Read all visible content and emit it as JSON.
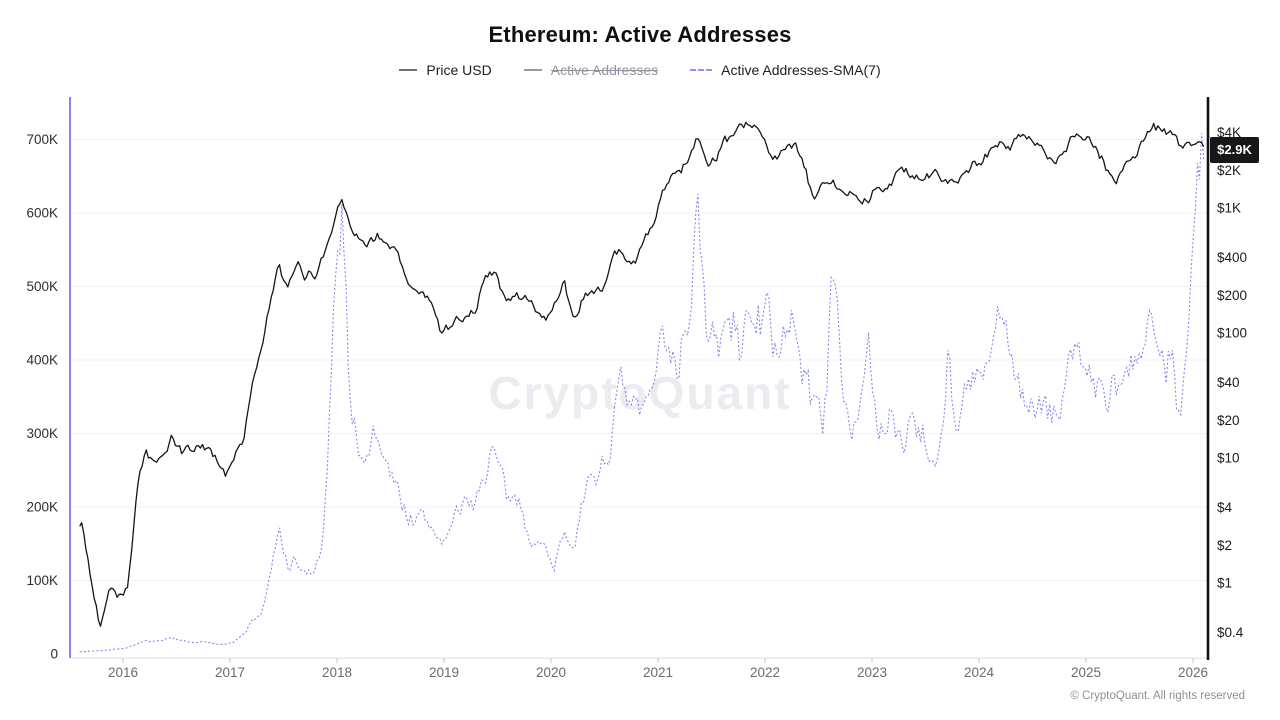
{
  "title": "Ethereum: Active Addresses",
  "watermark": "CryptoQuant",
  "footer": {
    "copyright": "© CryptoQuant. All rights reserved"
  },
  "chart_data": {
    "type": "line",
    "title": "Ethereum: Active Addresses",
    "xlim": [
      2015.58,
      2026.12
    ],
    "grid": "horizontal-only",
    "legend_position": "top-center",
    "x_axis": {
      "years": [
        2016,
        2017,
        2018,
        2019,
        2020,
        2021,
        2022,
        2023,
        2024,
        2025,
        2026
      ]
    },
    "left_axis": {
      "label": "Active Addresses",
      "scale": "linear",
      "color": "#8b80e8",
      "ylim": [
        0,
        760000
      ],
      "ticks": [
        {
          "v": 0,
          "label": "0"
        },
        {
          "v": 100000,
          "label": "100K"
        },
        {
          "v": 200000,
          "label": "200K"
        },
        {
          "v": 300000,
          "label": "300K"
        },
        {
          "v": 400000,
          "label": "400K"
        },
        {
          "v": 500000,
          "label": "500K"
        },
        {
          "v": 600000,
          "label": "600K"
        },
        {
          "v": 700000,
          "label": "700K"
        }
      ]
    },
    "right_axis": {
      "label": "Price USD",
      "scale": "log",
      "color": "#111111",
      "badge_label": "$2.9K",
      "badge_value": 2900,
      "ticks": [
        {
          "v": 0.4,
          "label": "$0.4"
        },
        {
          "v": 1,
          "label": "$1"
        },
        {
          "v": 2,
          "label": "$2"
        },
        {
          "v": 4,
          "label": "$4"
        },
        {
          "v": 10,
          "label": "$10"
        },
        {
          "v": 20,
          "label": "$20"
        },
        {
          "v": 40,
          "label": "$40"
        },
        {
          "v": 100,
          "label": "$100"
        },
        {
          "v": 200,
          "label": "$200"
        },
        {
          "v": 400,
          "label": "$400"
        },
        {
          "v": 1000,
          "label": "$1K"
        },
        {
          "v": 2000,
          "label": "$2K"
        },
        {
          "v": 4000,
          "label": "$4K"
        }
      ]
    },
    "months": [
      "2015-08",
      "2015-09",
      "2015-10",
      "2015-11",
      "2015-12",
      "2016-01",
      "2016-02",
      "2016-03",
      "2016-04",
      "2016-05",
      "2016-06",
      "2016-07",
      "2016-08",
      "2016-09",
      "2016-10",
      "2016-11",
      "2016-12",
      "2017-01",
      "2017-02",
      "2017-03",
      "2017-04",
      "2017-05",
      "2017-06",
      "2017-07",
      "2017-08",
      "2017-09",
      "2017-10",
      "2017-11",
      "2017-12",
      "2018-01",
      "2018-02",
      "2018-03",
      "2018-04",
      "2018-05",
      "2018-06",
      "2018-07",
      "2018-08",
      "2018-09",
      "2018-10",
      "2018-11",
      "2018-12",
      "2019-01",
      "2019-02",
      "2019-03",
      "2019-04",
      "2019-05",
      "2019-06",
      "2019-07",
      "2019-08",
      "2019-09",
      "2019-10",
      "2019-11",
      "2019-12",
      "2020-01",
      "2020-02",
      "2020-03",
      "2020-04",
      "2020-05",
      "2020-06",
      "2020-07",
      "2020-08",
      "2020-09",
      "2020-10",
      "2020-11",
      "2020-12",
      "2021-01",
      "2021-02",
      "2021-03",
      "2021-04",
      "2021-05",
      "2021-06",
      "2021-07",
      "2021-08",
      "2021-09",
      "2021-10",
      "2021-11",
      "2021-12",
      "2022-01",
      "2022-02",
      "2022-03",
      "2022-04",
      "2022-05",
      "2022-06",
      "2022-07",
      "2022-08",
      "2022-09",
      "2022-10",
      "2022-11",
      "2022-12",
      "2023-01",
      "2023-02",
      "2023-03",
      "2023-04",
      "2023-05",
      "2023-06",
      "2023-07",
      "2023-08",
      "2023-09",
      "2023-10",
      "2023-11",
      "2023-12",
      "2024-01",
      "2024-02",
      "2024-03",
      "2024-04",
      "2024-05",
      "2024-06",
      "2024-07",
      "2024-08",
      "2024-09",
      "2024-10",
      "2024-11",
      "2024-12",
      "2025-01",
      "2025-02",
      "2025-03",
      "2025-04",
      "2025-05",
      "2025-06",
      "2025-07",
      "2025-08",
      "2025-09",
      "2025-10",
      "2025-11",
      "2025-12",
      "2026-01"
    ],
    "series": [
      {
        "name": "Price USD",
        "axis": "right",
        "visible": true,
        "style": "solid",
        "color": "#161616",
        "values": [
          2.8,
          0.95,
          0.45,
          1.0,
          0.88,
          0.95,
          4.8,
          11.5,
          8.8,
          11.0,
          14.0,
          11.0,
          11.2,
          13.0,
          11.9,
          9.8,
          7.9,
          10.5,
          14,
          44,
          70,
          175,
          320,
          210,
          330,
          290,
          300,
          430,
          720,
          1300,
          860,
          530,
          560,
          640,
          470,
          450,
          290,
          220,
          205,
          175,
          110,
          118,
          135,
          138,
          168,
          255,
          305,
          215,
          185,
          180,
          181,
          151,
          132,
          170,
          238,
          134,
          200,
          225,
          230,
          300,
          420,
          355,
          385,
          560,
          700,
          1250,
          1600,
          1850,
          2700,
          3900,
          2250,
          2300,
          3200,
          3250,
          4050,
          4600,
          3900,
          2900,
          2800,
          3250,
          2950,
          1950,
          1070,
          1550,
          1650,
          1330,
          1550,
          1200,
          1200,
          1580,
          1640,
          1790,
          1900,
          1850,
          1900,
          1870,
          1650,
          1640,
          1790,
          2050,
          2300,
          2300,
          2950,
          3600,
          3150,
          3750,
          3400,
          3250,
          2550,
          2600,
          2500,
          3600,
          3350,
          3200,
          2700,
          1900,
          1600,
          2500,
          2450,
          3600,
          4400,
          4200,
          3900,
          3050,
          2950,
          2900
        ]
      },
      {
        "name": "Active Addresses",
        "axis": "left",
        "visible": false,
        "style": "solid",
        "color": "#9a9aa3",
        "values": []
      },
      {
        "name": "Active Addresses-SMA(7)",
        "axis": "left",
        "visible": true,
        "style": "dashed",
        "color": "#8487ea",
        "values": [
          3000,
          4000,
          5000,
          6000,
          7000,
          9000,
          14000,
          18000,
          16000,
          17000,
          22000,
          18000,
          15000,
          17000,
          15000,
          14000,
          15000,
          17000,
          25000,
          45000,
          55000,
          105000,
          160000,
          120000,
          125000,
          105000,
          110000,
          155000,
          390000,
          610000,
          330000,
          285000,
          280000,
          300000,
          255000,
          230000,
          205000,
          185000,
          180000,
          170000,
          160000,
          165000,
          185000,
          200000,
          210000,
          250000,
          280000,
          230000,
          190000,
          200000,
          175000,
          155000,
          140000,
          128000,
          170000,
          160000,
          195000,
          230000,
          255000,
          285000,
          355000,
          330000,
          320000,
          330000,
          340000,
          430000,
          440000,
          420000,
          480000,
          640000,
          430000,
          400000,
          440000,
          430000,
          420000,
          500000,
          450000,
          445000,
          420000,
          430000,
          415000,
          390000,
          345000,
          325000,
          500000,
          405000,
          310000,
          330000,
          440000,
          290000,
          305000,
          320000,
          290000,
          345000,
          310000,
          285000,
          270000,
          420000,
          310000,
          340000,
          365000,
          375000,
          400000,
          450000,
          400000,
          380000,
          340000,
          330000,
          310000,
          330000,
          350000,
          420000,
          400000,
          390000,
          360000,
          330000,
          340000,
          360000,
          380000,
          420000,
          480000,
          460000,
          420000,
          350000,
          420000,
          650000
        ]
      }
    ]
  }
}
